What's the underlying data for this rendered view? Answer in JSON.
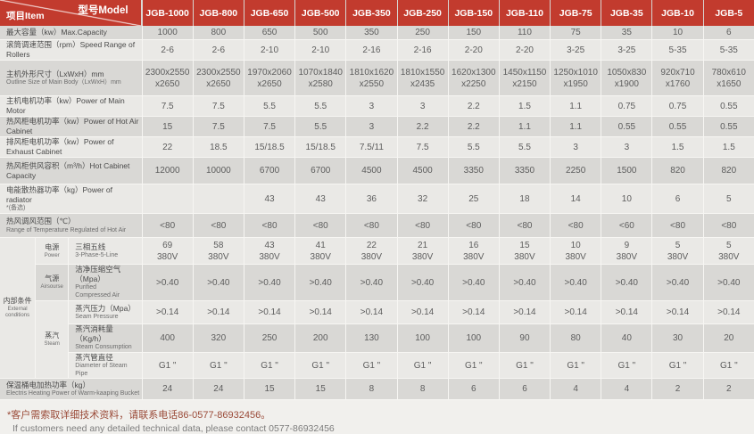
{
  "header": {
    "corner": {
      "model_label": "型号Model",
      "item_label": "项目Item"
    },
    "models": [
      "JGB-1000",
      "JGB-800",
      "JGB-650",
      "JGB-500",
      "JGB-350",
      "JGB-250",
      "JGB-150",
      "JGB-110",
      "JGB-75",
      "JGB-35",
      "JGB-10",
      "JGB-5"
    ]
  },
  "rows": [
    {
      "id": "max-capacity",
      "label_lines": [
        "最大容量（kw）Max.Capacity"
      ],
      "values": [
        "1000",
        "800",
        "650",
        "500",
        "350",
        "250",
        "150",
        "110",
        "75",
        "35",
        "10",
        "6"
      ]
    },
    {
      "id": "speed-range",
      "label_lines": [
        "滚筒调速范围（rpm）Speed Range of Rollers"
      ],
      "values": [
        "2-6",
        "2-6",
        "2-10",
        "2-10",
        "2-16",
        "2-16",
        "2-20",
        "2-20",
        "3-25",
        "3-25",
        "5-35",
        "5-35"
      ]
    },
    {
      "id": "outline-size",
      "label_lines": [
        "主机外形尺寸（LxWxH）mm",
        "Outline Size of Main Body（LxWxH）mm"
      ],
      "values": [
        "2300x2550\nx2650",
        "2300x2550\nx2650",
        "1970x2060\nx2650",
        "1070x1840\nx2580",
        "1810x1620\nx2550",
        "1810x1550\nx2435",
        "1620x1300\nx2250",
        "1450x1150\nx2150",
        "1250x1010\nx1950",
        "1050x830\nx1900",
        "920x710\nx1760",
        "780x610\nx1650"
      ]
    },
    {
      "id": "main-motor-power",
      "label_lines": [
        "主机电机功率（kw）Power of Main Motor"
      ],
      "values": [
        "7.5",
        "7.5",
        "5.5",
        "5.5",
        "3",
        "3",
        "2.2",
        "1.5",
        "1.1",
        "0.75",
        "0.75",
        "0.55"
      ]
    },
    {
      "id": "hot-air-cabinet-power",
      "label_lines": [
        "热风柜电机功率（kw）Power of Hot Air Cabinet"
      ],
      "values": [
        "15",
        "7.5",
        "7.5",
        "5.5",
        "3",
        "2.2",
        "2.2",
        "1.1",
        "1.1",
        "0.55",
        "0.55",
        "0.55"
      ]
    },
    {
      "id": "exhaust-cabinet-power",
      "label_lines": [
        "排风柜电机功率（kw）Power of Exhaust Cabinet"
      ],
      "values": [
        "22",
        "18.5",
        "15/18.5",
        "15/18.5",
        "7.5/11",
        "7.5",
        "5.5",
        "5.5",
        "3",
        "3",
        "1.5",
        "1.5"
      ]
    },
    {
      "id": "hot-cabinet-capacity",
      "label_lines": [
        "热风柜供风容积（m³/h）Hot Cabinet Capacity"
      ],
      "values": [
        "12000",
        "10000",
        "6700",
        "6700",
        "4500",
        "4500",
        "3350",
        "3350",
        "2250",
        "1500",
        "820",
        "820"
      ]
    },
    {
      "id": "radiator-power",
      "label_lines": [
        "电能散热器功率（kg）Power of radiator",
        "*(备选)"
      ],
      "values": [
        "",
        "",
        "43",
        "43",
        "36",
        "32",
        "25",
        "18",
        "14",
        "10",
        "6",
        "5"
      ]
    },
    {
      "id": "temperature-range",
      "label_lines": [
        "热风调风范围（℃）",
        "Range of Temperature Regulated of Hot Air"
      ],
      "values": [
        "<80",
        "<80",
        "<80",
        "<80",
        "<80",
        "<80",
        "<80",
        "<80",
        "<80",
        "<60",
        "<80",
        "<80"
      ]
    },
    {
      "id": "three-phase-five-line",
      "group": {
        "zh": "内部条件",
        "en": "External conditions",
        "span": 5
      },
      "subgroup": {
        "zh": "电源",
        "en": "Power",
        "span": 1
      },
      "sublabel_lines": [
        "三相五线",
        "3-Phase-5-Line"
      ],
      "values": [
        "69\n380V",
        "58\n380V",
        "43\n380V",
        "41\n380V",
        "22\n380V",
        "21\n380V",
        "16\n380V",
        "15\n380V",
        "10\n380V",
        "9\n380V",
        "5\n380V",
        "5\n380V"
      ]
    },
    {
      "id": "purified-compressed-air",
      "subgroup": {
        "zh": "气源",
        "en": "Airsourse",
        "span": 1
      },
      "sublabel_lines": [
        "洁净压缩空气（Mpa）",
        "Purified",
        "Compressed Air"
      ],
      "values": [
        ">0.40",
        ">0.40",
        ">0.40",
        ">0.40",
        ">0.40",
        ">0.40",
        ">0.40",
        ">0.40",
        ">0.40",
        ">0.40",
        ">0.40",
        ">0.40"
      ]
    },
    {
      "id": "steam-pressure",
      "subgroup": {
        "zh": "蒸汽",
        "en": "Steam",
        "span": 3
      },
      "sublabel_lines": [
        "蒸汽压力（Mpa）",
        "Seam Pressure"
      ],
      "values": [
        ">0.14",
        ">0.14",
        ">0.14",
        ">0.14",
        ">0.14",
        ">0.14",
        ">0.14",
        ">0.14",
        ">0.14",
        ">0.14",
        ">0.14",
        ">0.14"
      ]
    },
    {
      "id": "steam-consumption",
      "sublabel_lines": [
        "蒸汽消耗量（Kg/h）",
        "Steam Consumption"
      ],
      "values": [
        "400",
        "320",
        "250",
        "200",
        "130",
        "100",
        "100",
        "90",
        "80",
        "40",
        "30",
        "20"
      ]
    },
    {
      "id": "steam-pipe-diameter",
      "sublabel_lines": [
        "蒸汽管直径",
        "Diameter of Steam",
        "Pipe"
      ],
      "values": [
        "G1 \"",
        "G1 \"",
        "G1 \"",
        "G1 \"",
        "G1 \"",
        "G1 \"",
        "G1 \"",
        "G1 \"",
        "G1 \"",
        "G1 \"",
        "G1 \"",
        "G1 \""
      ]
    },
    {
      "id": "bucket-heating-power",
      "label_lines": [
        "保温桶电加热功率（kg）",
        "Electris Heating Power of Warm-kaaping Bucket"
      ],
      "values": [
        "24",
        "24",
        "15",
        "15",
        "8",
        "8",
        "6",
        "6",
        "4",
        "4",
        "2",
        "2"
      ]
    }
  ],
  "footer": {
    "note_zh": "*客户需索取详细技术资料，请联系电话86-0577-86932456。",
    "note_en": "If customers need any detailed technical data, please contact 0577-86932456"
  },
  "colors": {
    "header_red": "#c23b2e",
    "stripe_dark": "#d9d8d5",
    "stripe_light": "#eae9e6",
    "footer_note_red": "#9a4a38"
  }
}
